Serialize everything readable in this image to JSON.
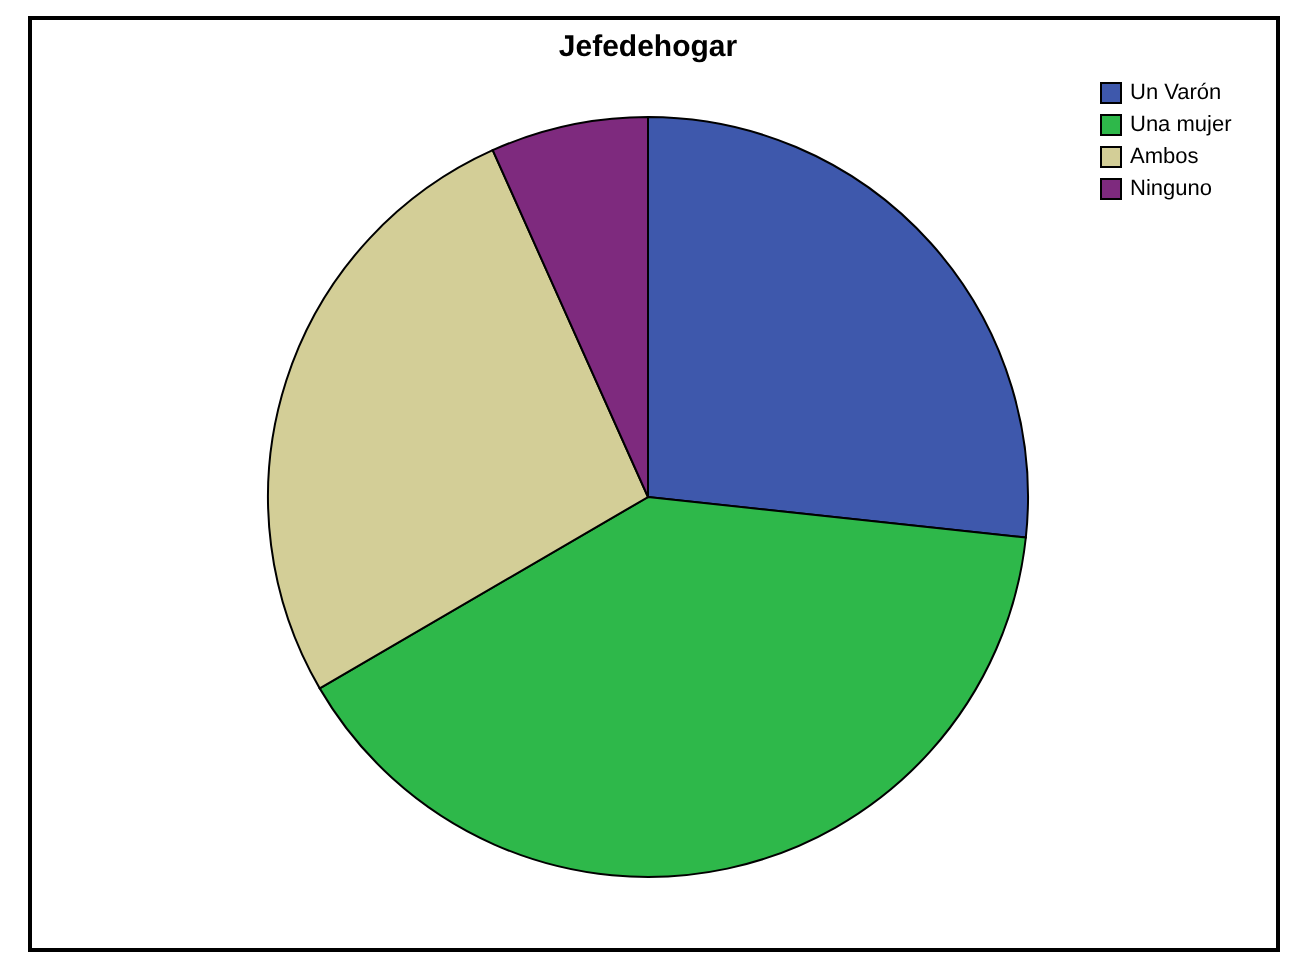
{
  "chart_data": {
    "type": "pie",
    "title": "Jefedehogar",
    "categories": [
      "Un Varón",
      "Una mujer",
      "Ambos",
      "Ninguno"
    ],
    "values": [
      26.7,
      39.9,
      26.7,
      6.7
    ],
    "colors": [
      "#3e58ac",
      "#2eb84a",
      "#d3ce97",
      "#7e2a7e"
    ],
    "legend": "top right"
  }
}
